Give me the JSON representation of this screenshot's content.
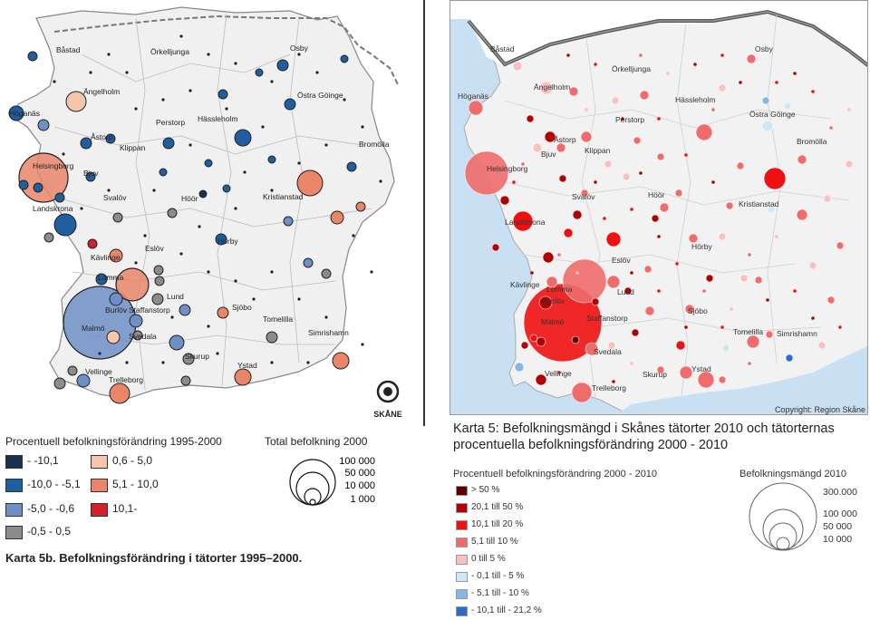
{
  "left": {
    "cities": [
      "Båstad",
      "Osby",
      "Ängelholm",
      "Örkelljunga",
      "Höganäs",
      "Östra Göinge",
      "Perstorp",
      "Hässleholm",
      "Åstorp",
      "Klippan",
      "Bromölla",
      "Helsingborg",
      "Bjuv",
      "Svalöv",
      "Höör",
      "Kristianstad",
      "Landskrona",
      "Hörby",
      "Eslöv",
      "Kävlinge",
      "Lomma",
      "Lund",
      "Sjöbo",
      "Burlöv",
      "Staffanstorp",
      "Tomelilla",
      "Malmö",
      "Svedala",
      "Simrishamn",
      "Skurup",
      "Ystad",
      "Vellinge",
      "Trelleborg"
    ],
    "legend_title": "Procentuell befolkningsförändring 1995-2000",
    "legend_items": [
      {
        "label": "- -10,1",
        "color": "#1b2f4e"
      },
      {
        "label": "0,6 - 5,0",
        "color": "#f6c5ae"
      },
      {
        "label": "-10,0 - -5,1",
        "color": "#1f5fa0"
      },
      {
        "label": "5,1 - 10,0",
        "color": "#e9866a"
      },
      {
        "label": "-5,0 - -0,6",
        "color": "#6f8fc7"
      },
      {
        "label": "10,1-",
        "color": "#d1212a"
      },
      {
        "label": "-0,5 - 0,5",
        "color": "#8c8c8c"
      }
    ],
    "size_title": "Total befolkning 2000",
    "size_labels": [
      "100 000",
      "50 000",
      "10 000",
      "1 000"
    ],
    "logo_text": "SKÅNE",
    "caption": "Karta 5b. Befolkningsförändring i tätorter 1995–2000."
  },
  "right": {
    "cities": [
      "Båstad",
      "Osby",
      "Örkelljunga",
      "Ängelholm",
      "Höganäs",
      "Hässleholm",
      "Perstorp",
      "Östra Göinge",
      "Åstorp",
      "Bjuv",
      "Klippan",
      "Bromölla",
      "Helsingborg",
      "Svalöv",
      "Höör",
      "Kristianstad",
      "Landskrona",
      "Hörby",
      "Eslöv",
      "Kävlinge",
      "Lomma",
      "Lund",
      "Burlöv",
      "Sjöbo",
      "Malmö",
      "Staffanstorp",
      "Tomelilla",
      "Simrishamn",
      "Svedala",
      "Vellinge",
      "Skurup",
      "Ystad",
      "Trelleborg"
    ],
    "copyright": "Copyright: Region Skåne",
    "caption": "Karta 5: Befolkningsmängd i Skånes tätorter 2010 och tätorternas procentuella befolkningsförändring 2000 - 2010",
    "legend_title": "Procentuell befolkningsförändring 2000 - 2010",
    "legend_items": [
      {
        "label": "> 50 %",
        "color": "#5c0000"
      },
      {
        "label": "20,1 till 50 %",
        "color": "#b30000"
      },
      {
        "label": "10,1 till 20 %",
        "color": "#ee1111"
      },
      {
        "label": "5,1 till 10 %",
        "color": "#f06b6b"
      },
      {
        "label": "0 till 5 %",
        "color": "#f8c0c0"
      },
      {
        "label": "- 0,1 till - 5 %",
        "color": "#cfe8f6"
      },
      {
        "label": "- 5,1 till - 10 %",
        "color": "#86b7e6"
      },
      {
        "label": "- 10,1 till - 21,2 %",
        "color": "#2a6ccc"
      }
    ],
    "size_title": "Befolkningsmängd 2010",
    "size_labels": [
      "300.000",
      "100 000",
      "50 000",
      "10 000"
    ]
  }
}
